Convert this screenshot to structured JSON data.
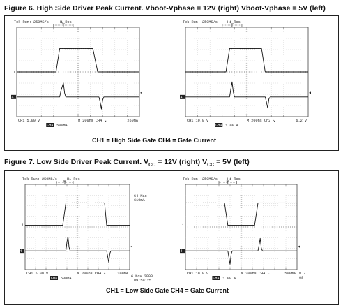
{
  "figure6": {
    "title": "Figure 6. High Side Driver Peak Current. Vboot-Vphase = 12V (right) Vboot-Vphase = 5V (left)",
    "caption": "CH1 = High Side Gate   CH4 = Gate Current",
    "left": {
      "header": "Tek Run: 250MS/s",
      "mode": "Hi Res",
      "ch1_scale": "CH1   5.00 V",
      "time_base": "M  200ns  CH4 ↘",
      "trigger": "260mA",
      "ch4_box": "CH4",
      "ch4_scale": "500mA"
    },
    "right": {
      "header": "Tek Run: 250MS/s",
      "mode": "Hi Res",
      "ch1_scale": "CH1   10.0 V",
      "time_base": "M  200ns  Ch2 ↘",
      "trigger": "6.2 V",
      "ch4_box": "CH4",
      "ch4_scale": "1.00 A"
    }
  },
  "figure7": {
    "title_pre": "Figure 7. Low Side Driver Peak Current. V",
    "title_sub": "CC",
    "title_mid": " = 12V (right) V",
    "title_sub2": "CC",
    "title_post": " = 5V (left)",
    "caption": "CH1 = Low Side Gate   CH4 = Gate Current",
    "left": {
      "header": "Tek Run: 250MS/s",
      "mode": "Hi Res",
      "ch1_scale": "CH1   5.00 V",
      "time_base": "M  200ns  CH4 ↘",
      "trigger": "200mA",
      "ch4_box": "CH4",
      "ch4_scale": "500mA",
      "annotation_1": "C4 Max",
      "annotation_2": "610mA",
      "date": "6 Nov 2000",
      "time": "09:50:25"
    },
    "right": {
      "header": "Tek Run: 250MS/s",
      "mode": "Hi Res",
      "ch1_scale": "CH1   10.0 V",
      "time_base": "M  200ns  CH4 ↘",
      "trigger": "500mA",
      "ch4_box": "CH4",
      "ch4_scale": "1.00 A",
      "corner": "8 7\n08"
    }
  },
  "chart_data": [
    {
      "type": "line",
      "title": "",
      "panel": "Figure 6 left",
      "xlabel": "",
      "ylabel": "",
      "x_divisions": 10,
      "time_per_division": "200ns",
      "series": [
        {
          "name": "CH1",
          "x": [
            0,
            3.2,
            3.5,
            6.2,
            6.6,
            10
          ],
          "values": [
            0,
            0,
            2.1,
            2.1,
            0,
            0
          ]
        },
        {
          "name": "CH4",
          "x": [
            0,
            3.5,
            3.6,
            3.8,
            3.9,
            4.0,
            6.7,
            6.8,
            6.9,
            7.0,
            7.1,
            10
          ],
          "values": [
            0,
            0,
            0.6,
            1.4,
            0.4,
            0,
            0,
            -0.5,
            -1.2,
            -0.3,
            0,
            0
          ]
        }
      ]
    },
    {
      "type": "line",
      "title": "",
      "panel": "Figure 6 right",
      "xlabel": "",
      "ylabel": "",
      "x_divisions": 10,
      "time_per_division": "200ns",
      "series": [
        {
          "name": "CH1",
          "x": [
            0,
            3.3,
            3.6,
            6.2,
            6.5,
            10
          ],
          "values": [
            0,
            0,
            2.1,
            2.1,
            0,
            0
          ]
        },
        {
          "name": "CH4",
          "x": [
            0,
            3.6,
            3.7,
            3.8,
            3.9,
            4.0,
            6.5,
            6.6,
            6.7,
            6.8,
            6.9,
            10
          ],
          "values": [
            0,
            0,
            0.8,
            1.5,
            0.5,
            0,
            0,
            -0.5,
            -1.1,
            -0.2,
            0,
            0
          ]
        }
      ]
    },
    {
      "type": "line",
      "title": "",
      "panel": "Figure 7 left",
      "xlabel": "",
      "ylabel": "",
      "x_divisions": 10,
      "time_per_division": "200ns",
      "series": [
        {
          "name": "CH1",
          "x": [
            0,
            3.6,
            3.9,
            7.6,
            7.8,
            10
          ],
          "values": [
            0,
            0,
            2.1,
            2.1,
            0,
            0
          ]
        },
        {
          "name": "CH4",
          "x": [
            0,
            3.9,
            4.0,
            4.1,
            4.2,
            4.3,
            7.8,
            7.9,
            8.0,
            8.1,
            8.2,
            10
          ],
          "values": [
            0,
            0,
            0.9,
            1.5,
            0.4,
            0,
            0,
            -0.6,
            -1.2,
            -0.3,
            0,
            0
          ]
        }
      ]
    },
    {
      "type": "line",
      "title": "",
      "panel": "Figure 7 right",
      "xlabel": "",
      "ylabel": "",
      "x_divisions": 10,
      "time_per_division": "200ns",
      "series": [
        {
          "name": "CH1",
          "x": [
            0,
            3.5,
            3.8,
            6.2,
            6.5,
            10
          ],
          "values": [
            2.1,
            2.1,
            0,
            0,
            2.1,
            2.1
          ]
        },
        {
          "name": "CH4",
          "x": [
            0,
            3.8,
            3.9,
            4.0,
            4.1,
            4.2,
            6.5,
            6.6,
            6.7,
            6.8,
            6.9,
            10
          ],
          "values": [
            0,
            0,
            -0.7,
            -1.4,
            -0.3,
            0,
            0,
            0.6,
            1.3,
            0.3,
            0,
            0
          ]
        }
      ]
    }
  ]
}
